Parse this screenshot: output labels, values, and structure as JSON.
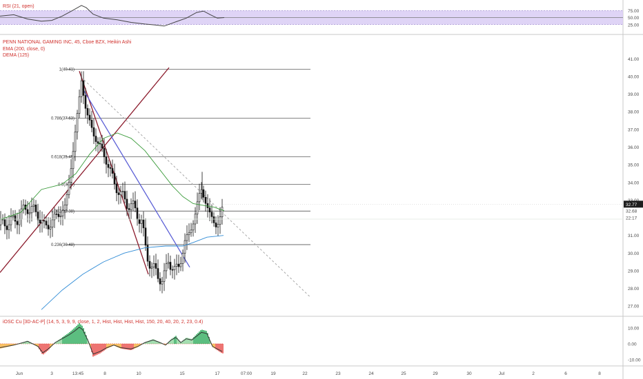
{
  "chart_data": [
    {
      "type": "line",
      "pane": "rsi",
      "title": "RSI (21, open)",
      "ylim": [
        0,
        100
      ],
      "yticks": [
        "75.00",
        "50.00",
        "25.00"
      ],
      "band": [
        25,
        75
      ],
      "midline": 50,
      "series": [
        {
          "x": [
            0,
            20,
            40,
            60,
            75,
            90,
            105,
            118,
            125,
            135,
            150,
            170,
            190,
            210,
            225,
            238,
            245,
            255,
            270,
            285,
            295,
            305,
            315,
            325
          ],
          "values": [
            55,
            60,
            45,
            37,
            40,
            55,
            75,
            93,
            85,
            62,
            48,
            42,
            33,
            27,
            24,
            20,
            26,
            35,
            48,
            68,
            73,
            60,
            48,
            50
          ]
        }
      ]
    },
    {
      "type": "candlestick",
      "pane": "price",
      "title": "PENN NATIONAL GAMING INC, 45, Cboe BZX, Heikin Ashi",
      "legend": [
        "EMA (200, close, 0)",
        "DEMA (125)"
      ],
      "ylim": [
        26.5,
        42.3
      ],
      "yticks": [
        "41.00",
        "40.00",
        "39.00",
        "38.00",
        "37.00",
        "36.00",
        "35.00",
        "34.00",
        "33.00",
        "31.00",
        "30.00",
        "29.00",
        "28.00",
        "27.00"
      ],
      "xticks": [
        "Jun",
        "3",
        "13:45",
        "8",
        "10",
        "15",
        "17",
        "07:00",
        "19",
        "22",
        "23",
        "24",
        "25",
        "29",
        "30",
        "Jul",
        "2",
        "6",
        "8"
      ],
      "last_price": "32.77",
      "countdown": "22:17",
      "cursor_price": "32.68",
      "fib_levels": [
        {
          "label": "1(40.41)",
          "price": 40.41
        },
        {
          "label": "0.786(37.63)",
          "price": 37.63
        },
        {
          "label": "0.618(35.45)",
          "price": 35.45
        },
        {
          "label": "0.5(33.9)",
          "price": 33.9
        },
        {
          "label": "0.382(32.38)",
          "price": 32.38
        },
        {
          "label": "0.236(30.48)",
          "price": 30.48
        }
      ],
      "close_path": {
        "x": [
          0,
          20,
          40,
          55,
          65,
          80,
          95,
          105,
          112,
          118,
          125,
          135,
          145,
          155,
          165,
          175,
          185,
          195,
          205,
          212,
          220,
          228,
          236,
          244,
          252,
          260,
          268,
          275,
          282,
          288,
          292,
          298,
          305,
          312,
          318,
          324
        ],
        "values": [
          31.6,
          31.8,
          32.6,
          32.2,
          31.4,
          32.0,
          32.6,
          35.5,
          37.8,
          39.8,
          38.0,
          36.8,
          36.0,
          35.2,
          34.0,
          33.3,
          32.8,
          32.5,
          31.8,
          30.0,
          29.2,
          28.8,
          28.4,
          29.6,
          29.0,
          29.3,
          30.6,
          31.2,
          32.0,
          33.2,
          33.6,
          32.9,
          32.1,
          31.6,
          31.8,
          32.7
        ]
      },
      "ema_200": {
        "x": [
          0,
          30,
          60,
          90,
          110,
          130,
          150,
          170,
          190,
          210,
          230,
          250,
          265,
          280,
          295,
          310,
          325
        ],
        "values": [
          31.9,
          32.3,
          33.6,
          33.9,
          34.5,
          35.6,
          36.5,
          36.8,
          36.5,
          35.8,
          34.8,
          33.8,
          33.2,
          32.8,
          32.7,
          32.6,
          32.4
        ]
      },
      "dema_125": {
        "x": [
          60,
          90,
          120,
          150,
          180,
          210,
          240,
          265,
          280,
          300,
          324
        ],
        "values": [
          26.8,
          27.9,
          28.8,
          29.5,
          30.0,
          30.3,
          30.4,
          30.4,
          30.6,
          30.9,
          31.0
        ]
      },
      "trendlines": [
        {
          "x": [
            0,
            245
          ],
          "values": [
            28.9,
            40.5
          ],
          "color": "#8b1a2b",
          "style": "solid"
        },
        {
          "x": [
            115,
            215
          ],
          "values": [
            40.3,
            28.8
          ],
          "color": "#8b1a2b",
          "style": "solid"
        },
        {
          "x": [
            120,
            275
          ],
          "values": [
            39.3,
            29.2
          ],
          "color": "#5b5fd6",
          "style": "solid"
        },
        {
          "x": [
            122,
            450
          ],
          "values": [
            39.8,
            27.5
          ],
          "color": "#9e9e9e",
          "style": "dashed"
        }
      ]
    },
    {
      "type": "bar",
      "pane": "oscillator",
      "title": "iOSC Cu [3D-AC-P] (14, 5, 3, 9, 9, close, 1, 2, Hist, Hist, Hist, Hist, 150, 20, 40, 20, 2, 23, 0.4)",
      "ylim": [
        -13,
        16
      ],
      "yticks": [
        "10.00",
        "0.00",
        "-10.00"
      ],
      "x": [
        0,
        20,
        40,
        55,
        62,
        70,
        80,
        90,
        100,
        108,
        115,
        120,
        128,
        135,
        145,
        155,
        165,
        175,
        190,
        200,
        210,
        222,
        232,
        240,
        248,
        255,
        262,
        270,
        278,
        285,
        292,
        300,
        308,
        315,
        322
      ],
      "values": [
        -3,
        -1,
        2,
        -2,
        -7,
        -4,
        1,
        4,
        7,
        10,
        13,
        11,
        2,
        -8,
        -6,
        -3,
        -1,
        -3,
        -4,
        -2,
        1,
        3,
        1,
        -1,
        3,
        5,
        1,
        4,
        3,
        6,
        9,
        8,
        -2,
        -4,
        -6
      ]
    }
  ]
}
